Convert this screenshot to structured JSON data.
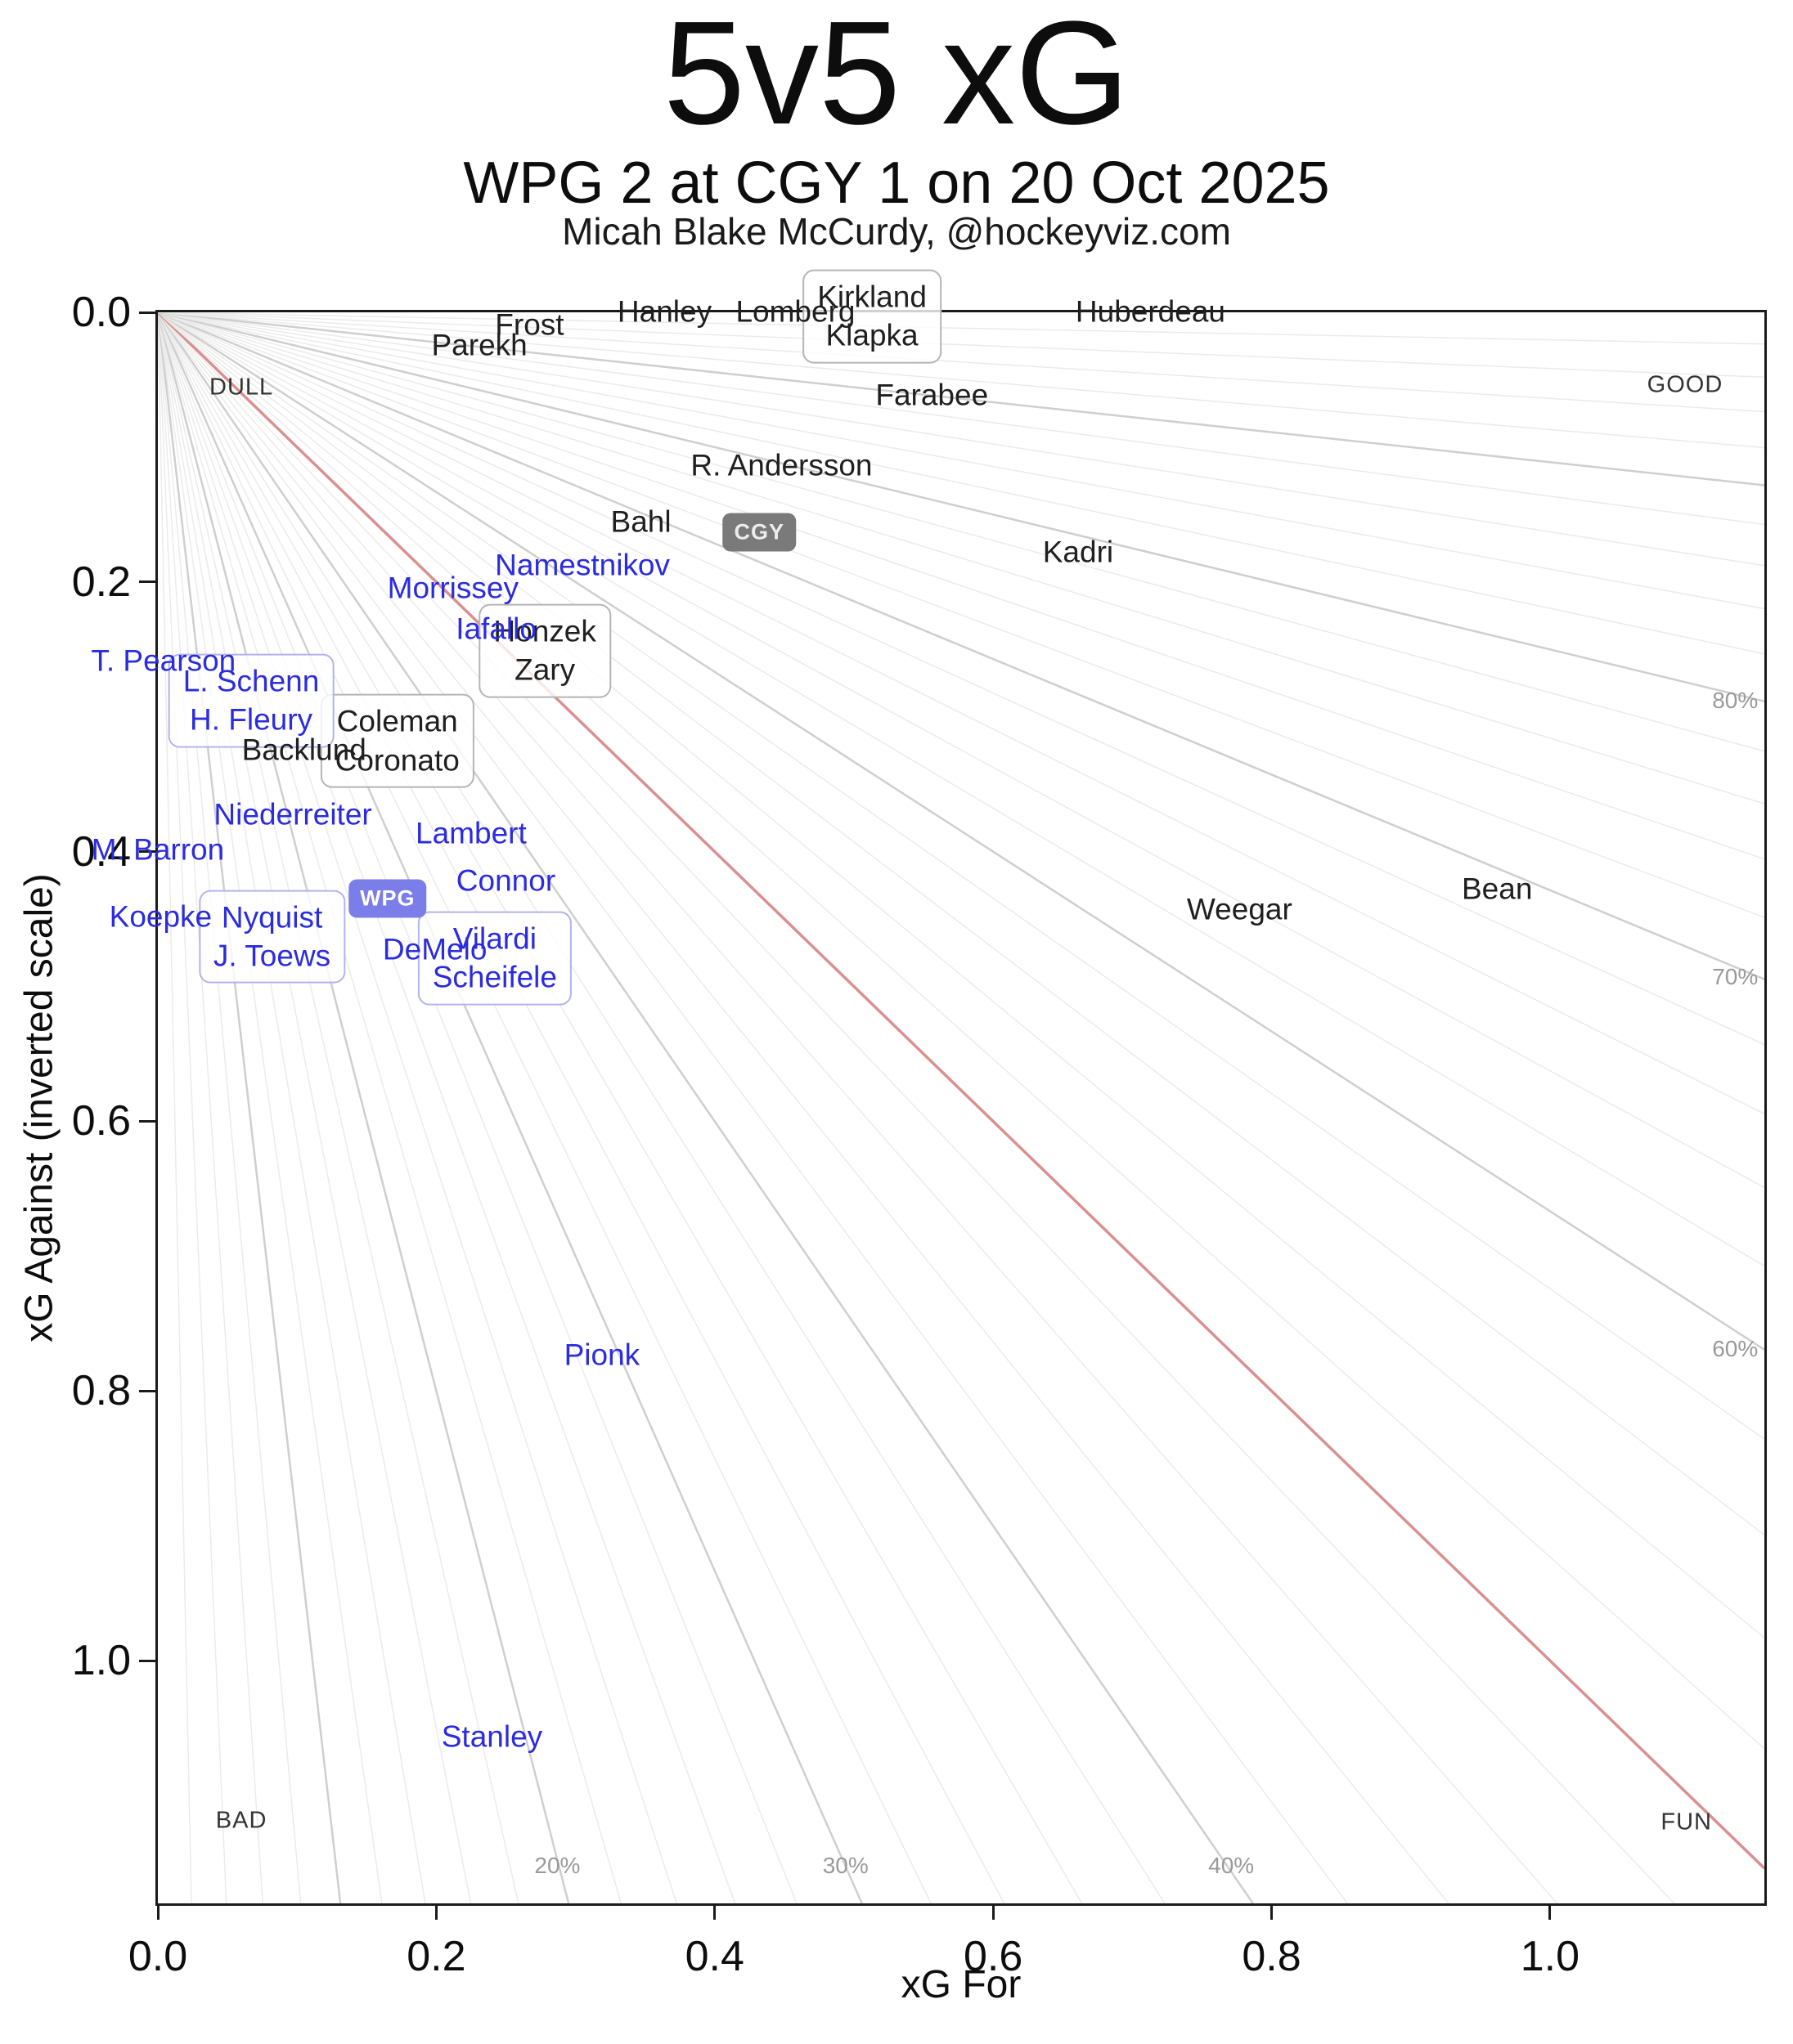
{
  "header": {
    "title": "5v5 xG",
    "subtitle": "WPG 2 at CGY 1 on 20 Oct 2025",
    "attribution": "Micah Blake McCurdy, @hockeyviz.com"
  },
  "chart_data": {
    "type": "scatter",
    "title": "5v5 xG",
    "subtitle": "WPG 2 at CGY 1 on 20 Oct 2025",
    "xlabel": "xG For",
    "ylabel": "xG Against (inverted scale)",
    "xlim": [
      0,
      1.154
    ],
    "ylim": [
      0,
      1.18
    ],
    "y_inverted": true,
    "grid": "radial share fan from origin",
    "x_tick_values": [
      0,
      0.2,
      0.4,
      0.6,
      0.8,
      1.0
    ],
    "x_tick_labels": [
      "0.0",
      "0.2",
      "0.4",
      "0.6",
      "0.8",
      "1.0"
    ],
    "y_tick_values": [
      0,
      0.2,
      0.4,
      0.6,
      0.8,
      1.0
    ],
    "y_tick_labels": [
      "0.0",
      "0.2",
      "0.4",
      "0.6",
      "0.8",
      "1.0"
    ],
    "colors": {
      "cgy_text": "#1f1f1f",
      "wpg_text": "#2b2be0",
      "minor_line": "#ebebeb",
      "major_line": "#cfcfcf",
      "fifty_line": "#d9908f",
      "pct_label": "#9a9a9a",
      "corner_label": "#333333",
      "cgy_box_border": "#b5b5b5",
      "wpg_box_border": "#b3b3ee",
      "cgy_badge_bg": "#7a7a7a",
      "cgy_badge_fg": "#ececec",
      "wpg_badge_bg": "#7b7de9",
      "wpg_badge_fg": "#ffffff"
    },
    "share_fan": {
      "min_pct": 2,
      "max_pct": 98,
      "step_pct": 2,
      "major_every_pct": 10,
      "red_pct": 50,
      "pct_labels": [
        {
          "text": "20%",
          "x": 0.287,
          "y": 1.152
        },
        {
          "text": "30%",
          "x": 0.494,
          "y": 1.152
        },
        {
          "text": "40%",
          "x": 0.771,
          "y": 1.152
        },
        {
          "text": "60%",
          "x": 1.133,
          "y": 0.769
        },
        {
          "text": "70%",
          "x": 1.133,
          "y": 0.493
        },
        {
          "text": "80%",
          "x": 1.133,
          "y": 0.288
        }
      ]
    },
    "corner_labels": [
      {
        "text": "DULL",
        "x": 0.06,
        "y": 0.056
      },
      {
        "text": "GOOD",
        "x": 1.097,
        "y": 0.054
      },
      {
        "text": "BAD",
        "x": 0.06,
        "y": 1.119
      },
      {
        "text": "FUN",
        "x": 1.098,
        "y": 1.12
      }
    ],
    "series": [
      {
        "team": "CGY",
        "badge": {
          "label": "CGY",
          "x": 0.432,
          "y": 0.163
        },
        "players": [
          {
            "label": "Hanley",
            "x": 0.364,
            "y": 0.0
          },
          {
            "label": "Lomberg",
            "x": 0.458,
            "y": 0.0
          },
          {
            "label": "Huberdeau",
            "x": 0.713,
            "y": 0.0
          },
          {
            "label": "Frost",
            "x": 0.267,
            "y": 0.01
          },
          {
            "label": "Parekh",
            "x": 0.231,
            "y": 0.025
          },
          {
            "label": "Farabee",
            "x": 0.556,
            "y": 0.062
          },
          {
            "label": "R. Andersson",
            "x": 0.448,
            "y": 0.114
          },
          {
            "label": "Bahl",
            "x": 0.347,
            "y": 0.156
          },
          {
            "label": "Kadri",
            "x": 0.661,
            "y": 0.178
          },
          {
            "label": "Backlund",
            "x": 0.105,
            "y": 0.325
          },
          {
            "label": "Weegar",
            "x": 0.777,
            "y": 0.443
          },
          {
            "label": "Bean",
            "x": 0.962,
            "y": 0.428
          }
        ],
        "pairs": [
          {
            "labels": [
              "Kirkland",
              "Klapka"
            ],
            "x": 0.513,
            "y": 0.003
          },
          {
            "labels": [
              "Honzek",
              "Zary"
            ],
            "x": 0.278,
            "y": 0.251
          },
          {
            "labels": [
              "Coleman",
              "Coronato"
            ],
            "x": 0.172,
            "y": 0.318
          }
        ]
      },
      {
        "team": "WPG",
        "badge": {
          "label": "WPG",
          "x": 0.165,
          "y": 0.435
        },
        "players": [
          {
            "label": "Namestnikov",
            "x": 0.305,
            "y": 0.188
          },
          {
            "label": "Morrissey",
            "x": 0.212,
            "y": 0.205
          },
          {
            "label": "Iafallo",
            "x": 0.243,
            "y": 0.235
          },
          {
            "label": "T. Pearson",
            "x": 0.004,
            "y": 0.259
          },
          {
            "label": "Niederreiter",
            "x": 0.097,
            "y": 0.373
          },
          {
            "label": "M. Barron",
            "x": 0.0,
            "y": 0.399
          },
          {
            "label": "Lambert",
            "x": 0.225,
            "y": 0.387
          },
          {
            "label": "Connor",
            "x": 0.25,
            "y": 0.422
          },
          {
            "label": "Koepke",
            "x": 0.002,
            "y": 0.449
          },
          {
            "label": "DeMelo",
            "x": 0.199,
            "y": 0.473
          },
          {
            "label": "Pionk",
            "x": 0.319,
            "y": 0.774
          },
          {
            "label": "Stanley",
            "x": 0.24,
            "y": 1.057
          }
        ],
        "pairs": [
          {
            "labels": [
              "L. Schenn",
              "H. Fleury"
            ],
            "x": 0.067,
            "y": 0.288
          },
          {
            "labels": [
              "Nyquist",
              "J. Toews"
            ],
            "x": 0.082,
            "y": 0.463
          },
          {
            "labels": [
              "Vilardi",
              "Scheifele"
            ],
            "x": 0.242,
            "y": 0.479
          }
        ]
      }
    ]
  }
}
